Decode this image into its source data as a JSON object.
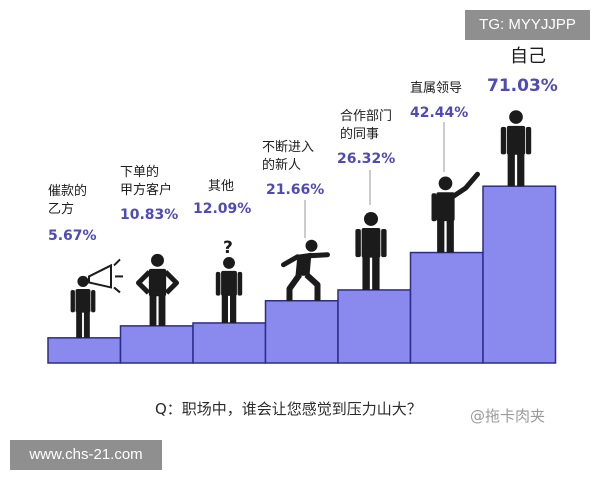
{
  "chart_data": {
    "type": "bar",
    "categories": [
      "催款的\n乙方",
      "下单的\n甲方客户",
      "其他",
      "不断进入\n的新人",
      "合作部门\n的同事",
      "直属领导",
      "自己"
    ],
    "values": [
      5.67,
      10.83,
      12.09,
      21.66,
      26.32,
      42.44,
      71.03
    ],
    "value_labels": [
      "5.67%",
      "10.83%",
      "12.09%",
      "21.66%",
      "26.32%",
      "42.44%",
      "71.03%"
    ],
    "title": "",
    "xlabel": "",
    "ylabel": "",
    "grid": false,
    "legend": "none",
    "figures": [
      "megaphone-person-icon",
      "hands-on-hips-person-icon",
      "question-person-icon",
      "climbing-person-icon",
      "standing-person-icon",
      "pointing-person-icon",
      "standing-person-icon"
    ]
  },
  "question": "Q：职场中，谁会让您感觉到压力山大？",
  "watermarks": {
    "top": "TG: MYYJJPP",
    "bottom": "www.chs-21.com",
    "source": "@拖卡肉夹"
  },
  "colors": {
    "bar_fill": "#8a89ee",
    "bar_edge": "#2c2c8c",
    "value_text": "#4e4ab8",
    "label_text": "#1c1c1c",
    "figure": "#1b1b1b"
  }
}
